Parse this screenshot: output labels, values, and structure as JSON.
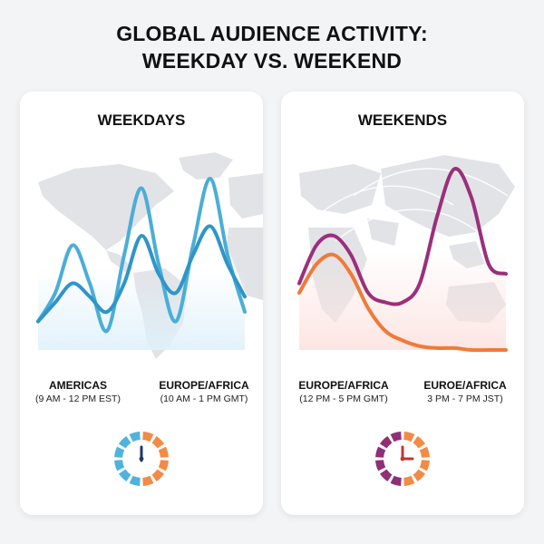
{
  "page": {
    "title_line1": "GLOBAL AUDIENCE ACTIVITY:",
    "title_line2": "WEEKDAY VS. WEEKEND"
  },
  "colors": {
    "weekday_series_1": "#4aaed6",
    "weekday_series_2": "#2f95c8",
    "weekend_series_1": "#f07a3a",
    "weekend_series_2": "#9b2f7a",
    "map": "#e2e3e6",
    "clock_blue": "#4fb3dc",
    "clock_orange": "#f28b45",
    "clock_purple": "#8e2f78"
  },
  "panels": {
    "weekdays": {
      "title": "WEEKDAYS",
      "labels": [
        {
          "name": "AMERICAS",
          "hours": "(9 AM - 12 PM EST)"
        },
        {
          "name": "EUROPE/AFRICA",
          "hours": "(10 AM - 1 PM GMT)"
        }
      ],
      "clock_icon": "clock-icon",
      "clock_hand": "12 o'clock"
    },
    "weekends": {
      "title": "WEEKENDS",
      "labels": [
        {
          "name": "EUROPE/AFRICA",
          "hours": "(12 PM -  5 PM GMT)"
        },
        {
          "name": "EUROE/AFRICA",
          "hours": "3 PM - 7 PM JST)"
        }
      ],
      "clock_icon": "clock-icon",
      "clock_hand": "3 o'clock"
    }
  },
  "chart_data": [
    {
      "type": "line",
      "title": "WEEKDAYS",
      "xlabel": "",
      "ylabel": "",
      "x": [
        0,
        1,
        2,
        3,
        4,
        5,
        6,
        7,
        8,
        9,
        10,
        11,
        12
      ],
      "ylim": [
        0,
        100
      ],
      "grid": false,
      "series": [
        {
          "values": [
            15,
            30,
            55,
            35,
            10,
            50,
            85,
            45,
            15,
            55,
            90,
            50,
            20
          ]
        },
        {
          "values": [
            15,
            25,
            35,
            28,
            20,
            35,
            60,
            40,
            30,
            50,
            65,
            45,
            28
          ]
        }
      ]
    },
    {
      "type": "line",
      "title": "WEEKENDS",
      "xlabel": "",
      "ylabel": "",
      "x": [
        0,
        1,
        2,
        3,
        4,
        5,
        6,
        7,
        8,
        9,
        10,
        11,
        12
      ],
      "ylim": [
        0,
        100
      ],
      "grid": false,
      "series": [
        {
          "values": [
            35,
            55,
            60,
            50,
            30,
            25,
            25,
            35,
            70,
            95,
            80,
            45,
            40
          ]
        },
        {
          "values": [
            30,
            45,
            50,
            40,
            22,
            10,
            5,
            2,
            1,
            1,
            0,
            0,
            0
          ]
        }
      ]
    }
  ]
}
